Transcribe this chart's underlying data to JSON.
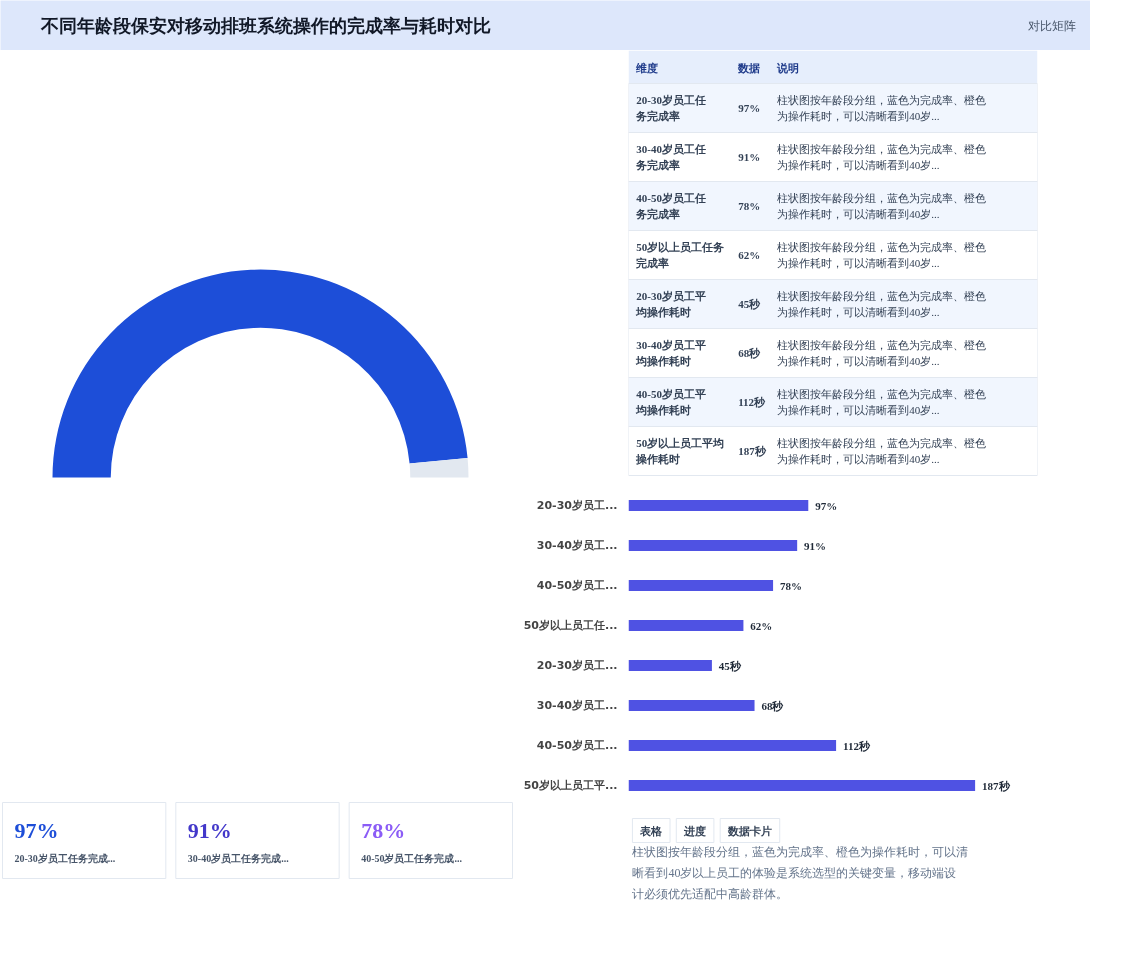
{
  "chart_data": [
    {
      "type": "other",
      "title": "不同年龄段保安对移动排班系统操作的完成率与耗时对比",
      "subtitle": "对比矩阵"
    },
    {
      "type": "donut",
      "categories": [
        null,
        null
      ],
      "values": [
        97,
        3
      ],
      "colors": [
        "#1d4ed8",
        "#e2e8f0"
      ]
    },
    {
      "type": "other",
      "annotations": [
        "维度",
        "数据",
        "说明",
        "柱状图按年龄段分组，蓝色为完成率、橙色为操作耗时，可以清晰看到40岁...",
        "柱状图按年龄段分组，蓝色为完成率、橙色为操作耗时，可以清晰看到40岁...",
        "柱状图按年龄段分组，蓝色为完成率、橙色为操作耗时，可以清晰看到40岁...",
        "柱状图按年龄段分组，蓝色为完成率、橙色为操作耗时，可以清晰看到40岁...",
        "柱状图按年龄段分组，蓝色为完成率、橙色为操作耗时，可以清晰看到40岁...",
        "柱状图按年龄段分组，蓝色为完成率、橙色为操作耗时，可以清晰看到40岁...",
        "柱状图按年龄段分组，蓝色为完成率、橙色为操作耗时，可以清晰看到40岁...",
        "柱状图按年龄段分组，蓝色为完成率、橙色为操作耗时，可以清晰看到40岁..."
      ],
      "categories": [
        "20-30岁员工任务完成率",
        "30-40岁员工任务完成率",
        "40-50岁员工任务完成率",
        "50岁以上员工任务完成率",
        "20-30岁员工平均操作耗时",
        "30-40岁员工平均操作耗时",
        "40-50岁员工平均操作耗时",
        "50岁以上员工平均操作耗时"
      ],
      "value_labels": [
        "97%",
        "91%",
        "78%",
        "62%",
        "45秒",
        "68秒",
        "112秒",
        "187秒"
      ]
    },
    {
      "type": "bar",
      "orientation": "horizontal",
      "color": "#4f52e3",
      "categories": [
        "20-30岁员工...",
        "30-40岁员工...",
        "40-50岁员工...",
        "50岁以上员工任...",
        "20-30岁员工...",
        "30-40岁员工...",
        "40-50岁员工...",
        "50岁以上员工平..."
      ],
      "values": [
        97,
        91,
        78,
        62,
        45,
        68,
        112,
        187
      ],
      "value_labels": [
        "97%",
        "91%",
        "78%",
        "62%",
        "45秒",
        "68秒",
        "112秒",
        "187秒"
      ],
      "annotations": [
        "表格",
        "进度",
        "数据卡片",
        "柱状图按年龄段分组，蓝色为完成率、橙色为操作耗时，可以清晰看到40岁以上员工的体验是系统选型的关键变量，移动端设计必须优先适配中高龄群体。"
      ]
    },
    {
      "type": "other",
      "categories": [
        "20-30岁员工任务完成...",
        "30-40岁员工任务完成...",
        "40-50岁员工任务完成..."
      ],
      "value_labels": [
        "97%",
        "91%",
        "78%"
      ]
    }
  ]
}
